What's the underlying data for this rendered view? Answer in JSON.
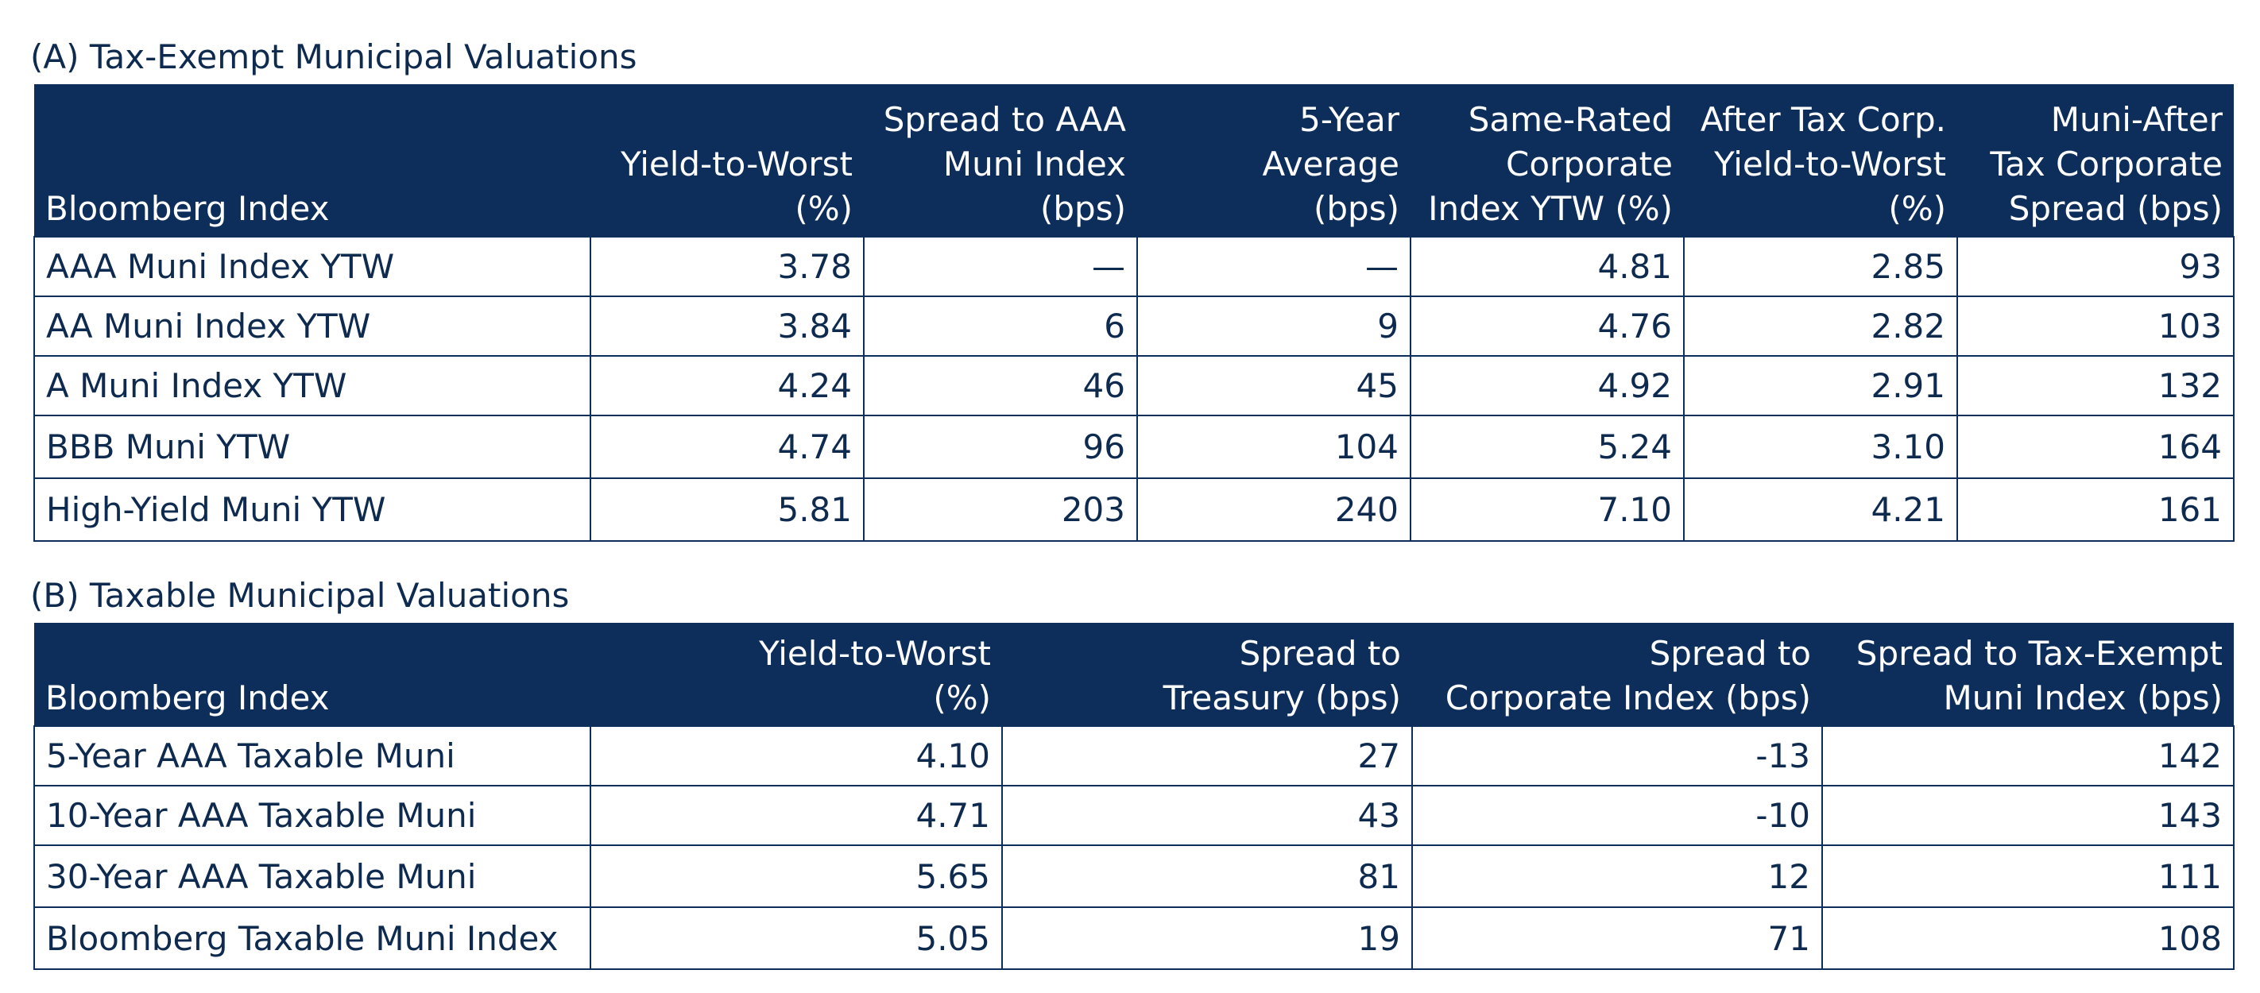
{
  "section_a": {
    "title": "(A) Tax-Exempt Municipal Valuations",
    "headers": [
      [
        "Bloomberg Index"
      ],
      [
        "Yield-to-Worst",
        "(%)"
      ],
      [
        "Spread to AAA",
        "Muni Index",
        "(bps)"
      ],
      [
        "5-Year",
        "Average",
        "(bps)"
      ],
      [
        "Same-Rated",
        "Corporate",
        "Index YTW (%)"
      ],
      [
        "After Tax Corp.",
        "Yield-to-Worst",
        "(%)"
      ],
      [
        "Muni-After",
        "Tax Corporate",
        "Spread (bps)"
      ]
    ],
    "rows": [
      [
        "AAA Muni Index YTW",
        "3.78",
        "—",
        "—",
        "4.81",
        "2.85",
        "93"
      ],
      [
        "AA Muni Index YTW",
        "3.84",
        "6",
        "9",
        "4.76",
        "2.82",
        "103"
      ],
      [
        "A Muni Index YTW",
        "4.24",
        "46",
        "45",
        "4.92",
        "2.91",
        "132"
      ],
      [
        "BBB Muni YTW",
        "4.74",
        "96",
        "104",
        "5.24",
        "3.10",
        "164"
      ],
      [
        "High-Yield Muni YTW",
        "5.81",
        "203",
        "240",
        "7.10",
        "4.21",
        "161"
      ]
    ]
  },
  "section_b": {
    "title": "(B) Taxable Municipal Valuations",
    "headers": [
      [
        "Bloomberg Index"
      ],
      [
        "Yield-to-Worst",
        "(%)"
      ],
      [
        "Spread to",
        "Treasury (bps)"
      ],
      [
        "Spread to",
        "Corporate Index (bps)"
      ],
      [
        "Spread to Tax-Exempt",
        "Muni Index (bps)"
      ]
    ],
    "rows": [
      [
        "5-Year AAA Taxable Muni",
        "4.10",
        "27",
        "-13",
        "142"
      ],
      [
        "10-Year AAA Taxable Muni",
        "4.71",
        "43",
        "-10",
        "143"
      ],
      [
        "30-Year AAA Taxable Muni",
        "5.65",
        "81",
        "12",
        "111"
      ],
      [
        "Bloomberg Taxable Muni Index",
        "5.05",
        "19",
        "71",
        "108"
      ]
    ]
  },
  "colors": {
    "header_bg": "#0d2d5b",
    "header_text": "#ffffff",
    "body_text": "#0e2a4f",
    "grid": "#0d2d5b"
  }
}
